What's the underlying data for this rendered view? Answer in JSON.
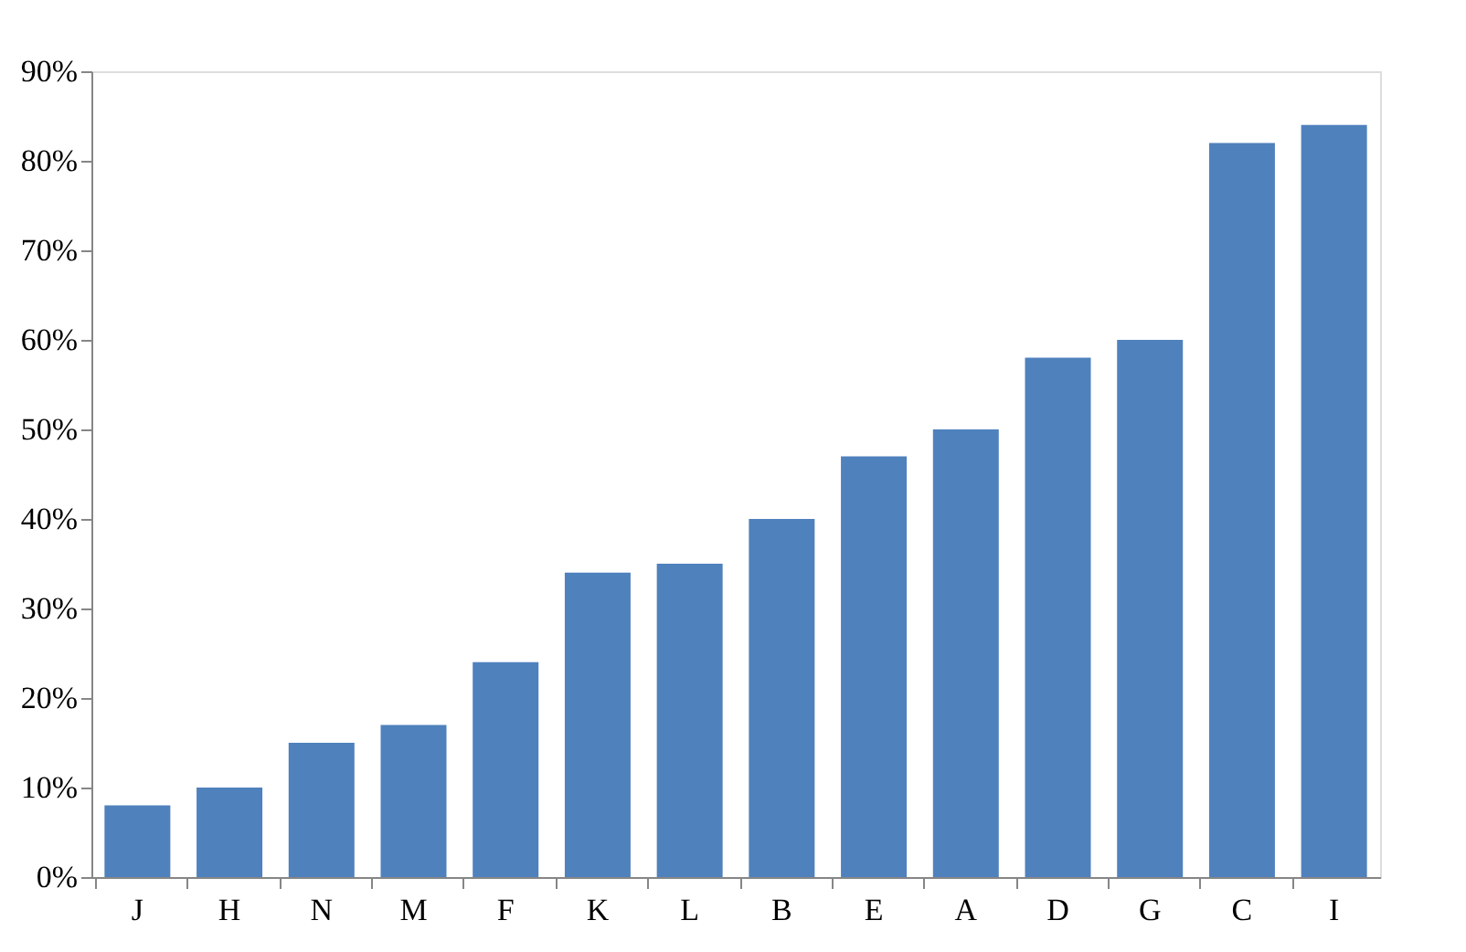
{
  "chart_data": {
    "type": "bar",
    "categories": [
      "J",
      "H",
      "N",
      "M",
      "F",
      "K",
      "L",
      "B",
      "E",
      "A",
      "D",
      "G",
      "C",
      "I"
    ],
    "values": [
      8,
      10,
      15,
      17,
      24,
      34,
      35,
      40,
      47,
      50,
      58,
      60,
      82,
      84
    ],
    "color": "#4f81bd",
    "ylim": [
      0,
      90
    ],
    "yticks": [
      {
        "value": 0,
        "label": "0%"
      },
      {
        "value": 10,
        "label": "10%"
      },
      {
        "value": 20,
        "label": "20%"
      },
      {
        "value": 30,
        "label": "30%"
      },
      {
        "value": 40,
        "label": "40%"
      },
      {
        "value": 50,
        "label": "50%"
      },
      {
        "value": 60,
        "label": "60%"
      },
      {
        "value": 70,
        "label": "70%"
      },
      {
        "value": 80,
        "label": "80%"
      },
      {
        "value": 90,
        "label": "90%"
      }
    ],
    "grid": false
  }
}
